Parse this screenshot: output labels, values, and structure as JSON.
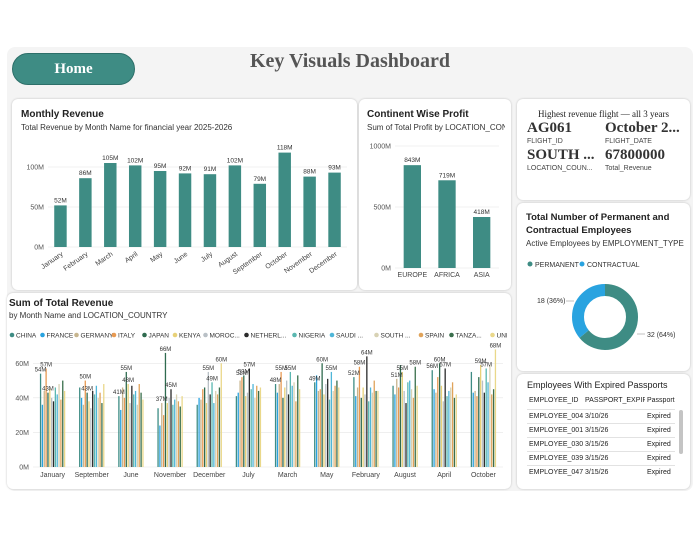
{
  "header": {
    "home_label": "Home",
    "title": "Key Visuals Dashboard"
  },
  "colors": {
    "teal": "#3e8c84",
    "accent": "#29a3e0"
  },
  "monthly": {
    "title": "Monthly Revenue",
    "subtitle": "Total Revenue by Month Name for financial year 2025-2026",
    "y_ticks": [
      "0M",
      "50M",
      "100M"
    ]
  },
  "continent": {
    "title": "Continent Wise Profit",
    "subtitle": "Sum of Total Profit by LOCATION_CON...",
    "y_ticks": [
      "0M",
      "500M",
      "1000M"
    ]
  },
  "kpi": {
    "title": "Highest revenue flight — all 3 years",
    "flight_id": "AG061",
    "flight_id_label": "FLIGHT_ID",
    "flight_date": "October 2...",
    "flight_date_label": "FLIGHT_DATE",
    "location": "SOUTH ...",
    "location_label": "LOCATION_COUN...",
    "revenue": "67800000",
    "revenue_label": "Total_Revenue"
  },
  "employees": {
    "title_line1": "Total Number of Permanent and",
    "title_line2": "Contractual Employees",
    "subtitle": "Active Employees by EMPLOYMENT_TYPE",
    "legend_permanent": "PERMANENT",
    "legend_contractual": "CONTRACTUAL",
    "label_contractual": "18 (36%)",
    "label_permanent": "32 (64%)"
  },
  "sum_revenue": {
    "title": "Sum of Total Revenue",
    "subtitle": "by Month Name and LOCATION_COUNTRY",
    "y_ticks": [
      "0M",
      "20M",
      "40M",
      "60M"
    ]
  },
  "passports": {
    "title": "Employees With Expired Passports",
    "columns": [
      "EMPLOYEE_ID",
      "PASSPORT_EXPIRY",
      "Passport St"
    ],
    "rows": [
      [
        "EMPLOYEE_004",
        "3/10/26",
        "Expired"
      ],
      [
        "EMPLOYEE_001",
        "3/15/26",
        "Expired"
      ],
      [
        "EMPLOYEE_030",
        "3/15/26",
        "Expired"
      ],
      [
        "EMPLOYEE_039",
        "3/15/26",
        "Expired"
      ],
      [
        "EMPLOYEE_047",
        "3/15/26",
        "Expired"
      ]
    ]
  },
  "chart_data": [
    {
      "type": "bar",
      "title": "Monthly Revenue",
      "categories": [
        "January",
        "February",
        "March",
        "April",
        "May",
        "June",
        "July",
        "August",
        "September",
        "October",
        "November",
        "December"
      ],
      "values": [
        52,
        86,
        105,
        102,
        95,
        92,
        91,
        102,
        79,
        118,
        88,
        93
      ],
      "labels": [
        "52M",
        "86M",
        "105M",
        "102M",
        "95M",
        "92M",
        "91M",
        "102M",
        "79M",
        "118M",
        "88M",
        "93M"
      ],
      "ylim": [
        0,
        125
      ]
    },
    {
      "type": "bar",
      "title": "Continent Wise Profit",
      "categories": [
        "EUROPE",
        "AFRICA",
        "ASIA"
      ],
      "values": [
        843,
        719,
        418
      ],
      "labels": [
        "843M",
        "719M",
        "418M"
      ],
      "ylim": [
        0,
        1000
      ]
    },
    {
      "type": "pie",
      "title": "Total Number of Permanent and Contractual Employees",
      "categories": [
        "PERMANENT",
        "CONTRACTUAL"
      ],
      "values": [
        32,
        18
      ]
    },
    {
      "type": "bar",
      "title": "Sum of Total Revenue",
      "legend": [
        "CHINA",
        "FRANCE",
        "GERMANY",
        "ITALY",
        "JAPAN",
        "KENYA",
        "MOROC...",
        "NETHERL...",
        "NIGERIA",
        "SAUDI ...",
        "SOUTH ...",
        "SPAIN",
        "TANZA...",
        "UNITED ..."
      ],
      "legend_colors": [
        "#3e8c84",
        "#29a3e0",
        "#c7b58e",
        "#e89a52",
        "#2f6b4f",
        "#e8d178",
        "#b9c0c6",
        "#2b2b2b",
        "#5ab7b0",
        "#4fb6d8",
        "#d8d2b4",
        "#e0a35a",
        "#3a6f4c",
        "#ead88a"
      ],
      "categories": [
        "January",
        "September",
        "June",
        "November",
        "December",
        "July",
        "March",
        "May",
        "February",
        "August",
        "April",
        "October"
      ],
      "ylim": [
        0,
        70
      ],
      "series": [
        {
          "name": "CHINA",
          "values": [
            54,
            46,
            41,
            34,
            36,
            41,
            48,
            49,
            52,
            47,
            56,
            55
          ]
        },
        {
          "name": "FRANCE",
          "values": [
            36,
            40,
            33,
            24,
            40,
            43,
            43,
            53,
            41,
            42,
            45,
            43
          ]
        },
        {
          "name": "GERMANY",
          "values": [
            44,
            36,
            46,
            37,
            39,
            50,
            48,
            44,
            46,
            51,
            43,
            44
          ]
        },
        {
          "name": "ITALY",
          "values": [
            57,
            50,
            40,
            30,
            45,
            52,
            55,
            45,
            58,
            46,
            52,
            41
          ]
        },
        {
          "name": "JAPAN",
          "values": [
            43,
            43,
            55,
            66,
            46,
            53,
            40,
            60,
            40,
            59,
            60,
            52
          ]
        },
        {
          "name": "KENYA",
          "values": [
            45,
            38,
            48,
            37,
            37,
            41,
            46,
            42,
            46,
            55,
            47,
            59
          ]
        },
        {
          "name": "MOROC...",
          "values": [
            40,
            34,
            37,
            40,
            55,
            43,
            50,
            48,
            42,
            44,
            38,
            50
          ]
        },
        {
          "name": "NETHERL...",
          "values": [
            38,
            44,
            47,
            45,
            42,
            57,
            42,
            51,
            64,
            37,
            57,
            43
          ]
        },
        {
          "name": "NIGERIA",
          "values": [
            46,
            42,
            42,
            36,
            49,
            45,
            55,
            39,
            38,
            49,
            41,
            57
          ]
        },
        {
          "name": "SAUDI ...",
          "values": [
            42,
            47,
            44,
            39,
            37,
            48,
            47,
            55,
            46,
            50,
            44,
            49
          ]
        },
        {
          "name": "SOUTH ...",
          "values": [
            48,
            40,
            36,
            42,
            44,
            40,
            49,
            44,
            43,
            45,
            46,
            59
          ]
        },
        {
          "name": "SPAIN",
          "values": [
            39,
            43,
            48,
            38,
            42,
            47,
            38,
            47,
            50,
            40,
            49,
            42
          ]
        },
        {
          "name": "TANZA...",
          "values": [
            50,
            37,
            43,
            35,
            46,
            44,
            53,
            50,
            44,
            58,
            40,
            45
          ]
        },
        {
          "name": "UNITED ...",
          "values": [
            44,
            48,
            39,
            41,
            60,
            46,
            45,
            46,
            44,
            47,
            42,
            68
          ]
        }
      ],
      "labels": [
        {
          "month": "January",
          "series": "CHINA",
          "text": "54M"
        },
        {
          "month": "January",
          "series": "ITALY",
          "text": "57M"
        },
        {
          "month": "January",
          "series": "JAPAN",
          "text": "43M"
        },
        {
          "month": "September",
          "series": "ITALY",
          "text": "50M"
        },
        {
          "month": "September",
          "series": "JAPAN",
          "text": "43M"
        },
        {
          "month": "June",
          "series": "JAPAN",
          "text": "55M"
        },
        {
          "month": "June",
          "series": "KENYA",
          "text": "48M"
        },
        {
          "month": "June",
          "series": "CHINA",
          "text": "41M"
        },
        {
          "month": "November",
          "series": "JAPAN",
          "text": "66M"
        },
        {
          "month": "November",
          "series": "NETHERL...",
          "text": "45M"
        },
        {
          "month": "November",
          "series": "GERMANY",
          "text": "37M"
        },
        {
          "month": "December",
          "series": "UNITED ...",
          "text": "60M"
        },
        {
          "month": "December",
          "series": "MOROC...",
          "text": "55M"
        },
        {
          "month": "December",
          "series": "NIGERIA",
          "text": "49M"
        },
        {
          "month": "July",
          "series": "NETHERL...",
          "text": "57M"
        },
        {
          "month": "July",
          "series": "JAPAN",
          "text": "53M"
        },
        {
          "month": "July",
          "series": "ITALY",
          "text": "52M"
        },
        {
          "month": "March",
          "series": "ITALY",
          "text": "55M"
        },
        {
          "month": "March",
          "series": "NIGERIA",
          "text": "55M"
        },
        {
          "month": "March",
          "series": "CHINA",
          "text": "48M"
        },
        {
          "month": "May",
          "series": "JAPAN",
          "text": "60M"
        },
        {
          "month": "May",
          "series": "SAUDI ...",
          "text": "55M"
        },
        {
          "month": "May",
          "series": "CHINA",
          "text": "49M"
        },
        {
          "month": "February",
          "series": "NETHERL...",
          "text": "64M"
        },
        {
          "month": "February",
          "series": "ITALY",
          "text": "58M"
        },
        {
          "month": "February",
          "series": "CHINA",
          "text": "52M"
        },
        {
          "month": "August",
          "series": "TANZA...",
          "text": "58M"
        },
        {
          "month": "August",
          "series": "KENYA",
          "text": "55M"
        },
        {
          "month": "August",
          "series": "GERMANY",
          "text": "51M"
        },
        {
          "month": "April",
          "series": "JAPAN",
          "text": "60M"
        },
        {
          "month": "April",
          "series": "NETHERL...",
          "text": "57M"
        },
        {
          "month": "April",
          "series": "CHINA",
          "text": "56M"
        },
        {
          "month": "October",
          "series": "UNITED ...",
          "text": "68M"
        },
        {
          "month": "October",
          "series": "KENYA",
          "text": "59M"
        },
        {
          "month": "October",
          "series": "NIGERIA",
          "text": "57M"
        }
      ]
    }
  ]
}
